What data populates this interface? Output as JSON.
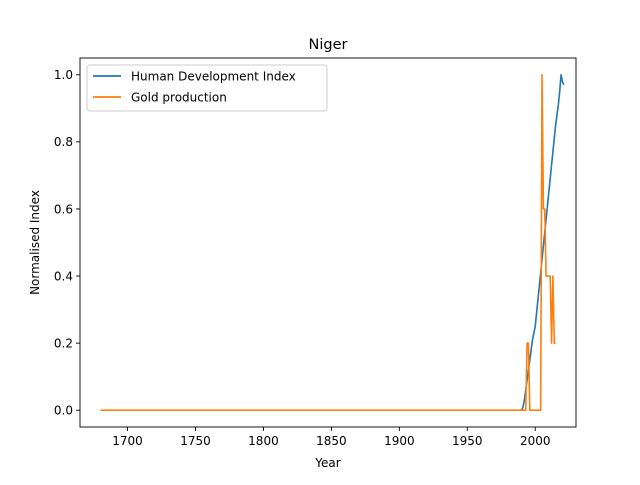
{
  "chart_data": {
    "type": "line",
    "title": "Niger",
    "xlabel": "Year",
    "ylabel": "Normalised Index",
    "xlim": [
      1665,
      2030
    ],
    "ylim": [
      -0.05,
      1.05
    ],
    "xticks": [
      1700,
      1750,
      1800,
      1850,
      1900,
      1950,
      2000
    ],
    "yticks": [
      0.0,
      0.2,
      0.4,
      0.6,
      0.8,
      1.0
    ],
    "xtick_labels": [
      "1700",
      "1750",
      "1800",
      "1850",
      "1900",
      "1950",
      "2000"
    ],
    "ytick_labels": [
      "0.0",
      "0.2",
      "0.4",
      "0.6",
      "0.8",
      "1.0"
    ],
    "grid": false,
    "legend_position": "top-left",
    "series": [
      {
        "name": "Human Development Index",
        "color": "#1f77b4",
        "x": [
          1990,
          1991,
          1992,
          1993,
          1994,
          1995,
          1996,
          1997,
          1998,
          1999,
          2000,
          2001,
          2002,
          2003,
          2004,
          2005,
          2006,
          2007,
          2008,
          2009,
          2010,
          2011,
          2012,
          2013,
          2014,
          2015,
          2016,
          2017,
          2018,
          2019,
          2020,
          2021
        ],
        "y": [
          0.0,
          0.01,
          0.03,
          0.06,
          0.09,
          0.12,
          0.15,
          0.18,
          0.21,
          0.23,
          0.25,
          0.29,
          0.33,
          0.37,
          0.41,
          0.45,
          0.49,
          0.53,
          0.57,
          0.61,
          0.65,
          0.69,
          0.73,
          0.77,
          0.81,
          0.85,
          0.88,
          0.91,
          0.95,
          1.0,
          0.98,
          0.97
        ]
      },
      {
        "name": "Gold production",
        "color": "#ff7f0e",
        "x": [
          1680,
          1990,
          1991,
          1992,
          1993,
          1994,
          1995,
          1996,
          1997,
          1998,
          1999,
          2000,
          2001,
          2002,
          2003,
          2004,
          2005,
          2006,
          2007,
          2008,
          2009,
          2010,
          2011,
          2012,
          2013,
          2014,
          2015
        ],
        "y": [
          0.0,
          0.0,
          0.0,
          0.0,
          0.0,
          0.2,
          0.2,
          0.0,
          0.0,
          0.0,
          0.0,
          0.0,
          0.0,
          0.0,
          0.0,
          0.0,
          1.0,
          0.6,
          0.6,
          0.4,
          0.4,
          0.4,
          0.4,
          0.2,
          0.4,
          0.2,
          0.2
        ]
      }
    ]
  }
}
